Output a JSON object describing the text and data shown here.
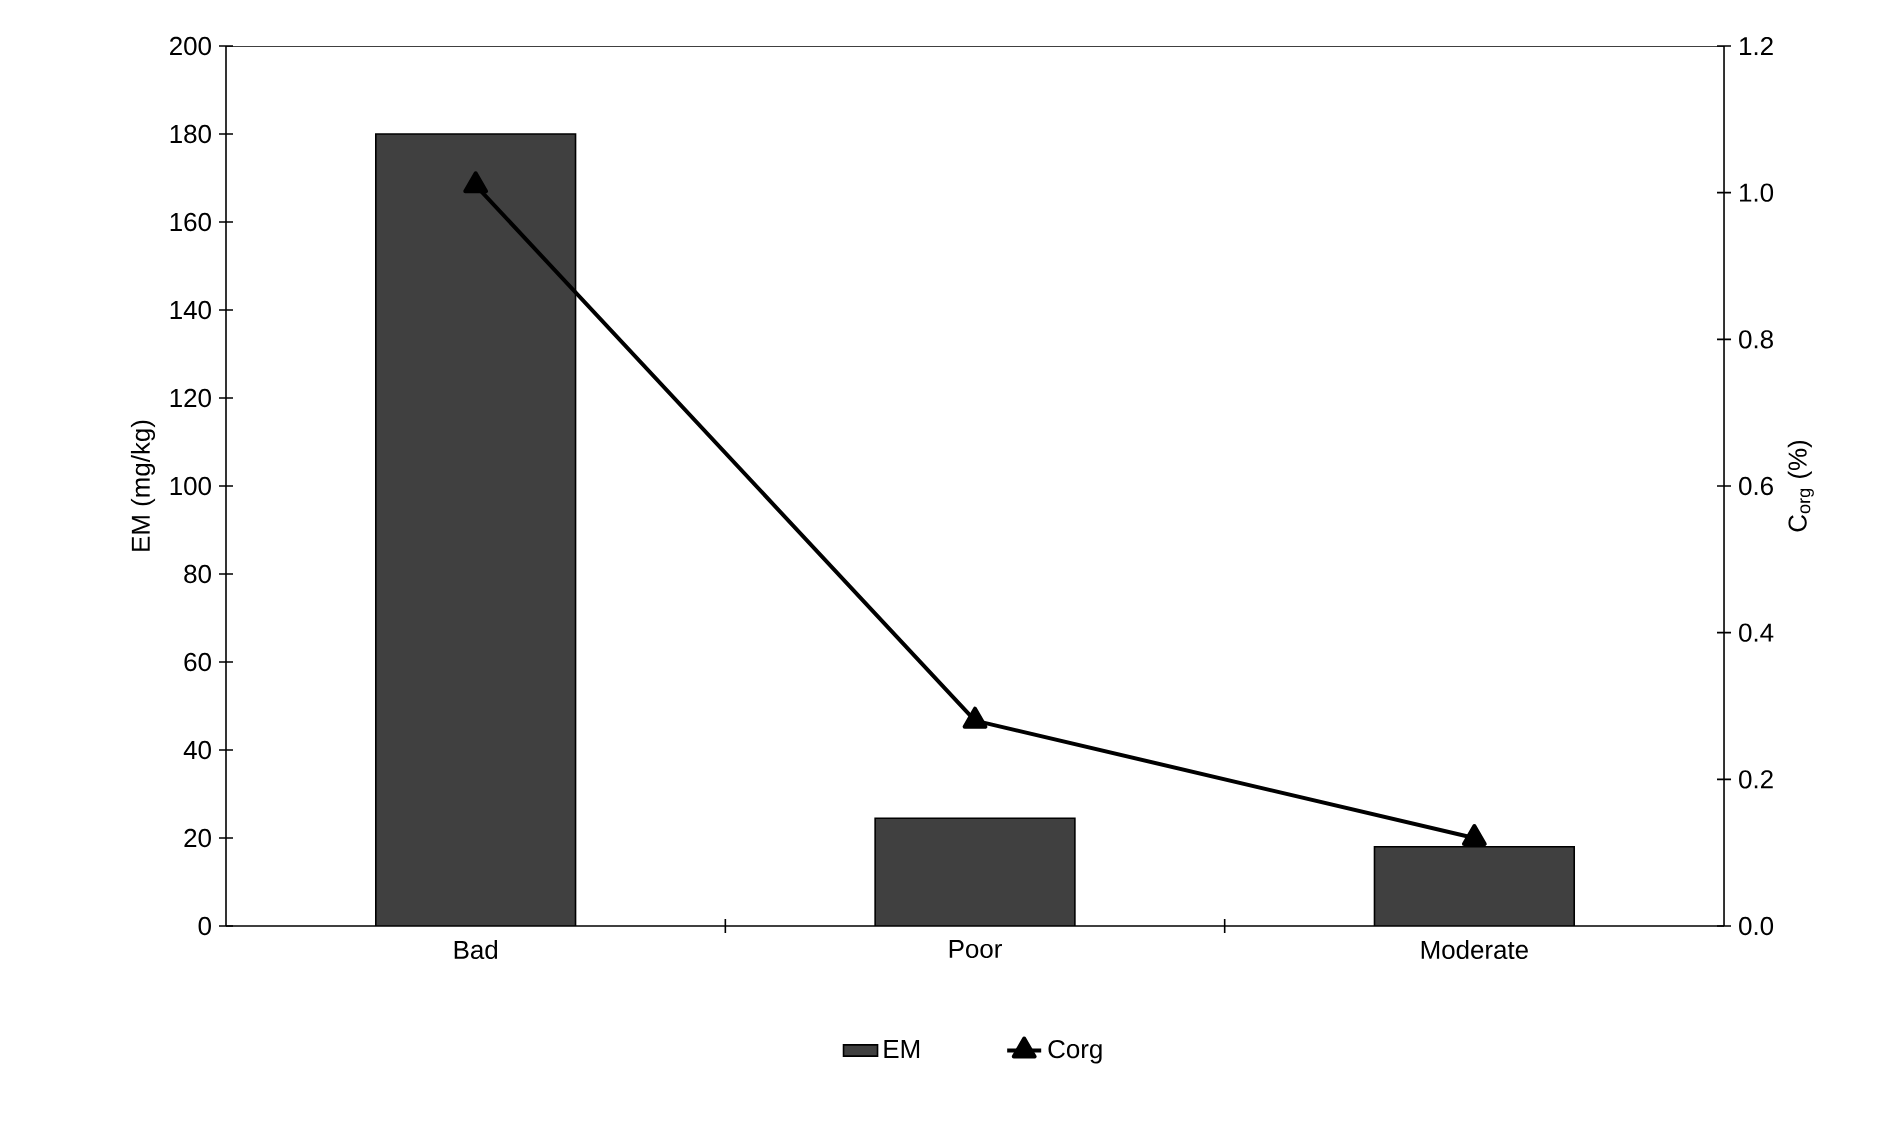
{
  "chart_data": {
    "type": "bar",
    "categories": [
      "Bad",
      "Poor",
      "Moderate"
    ],
    "ylabel": "EM (mg/kg)",
    "y2label": "C$_{org}$ (%)",
    "ylim": [
      0,
      200
    ],
    "yticks": [
      0,
      20,
      40,
      60,
      80,
      100,
      120,
      140,
      160,
      180,
      200
    ],
    "y2lim": [
      0,
      1.2
    ],
    "y2ticks": [
      {
        "value": 0,
        "label": "0.0"
      },
      {
        "value": 0.2,
        "label": "0.2"
      },
      {
        "value": 0.4,
        "label": "0.4"
      },
      {
        "value": 0.6,
        "label": "0.6"
      },
      {
        "value": 0.8,
        "label": "0.8"
      },
      {
        "value": 1.0,
        "label": "1.0"
      },
      {
        "value": 1.2,
        "label": "1.2"
      }
    ],
    "series": [
      {
        "name": "EM",
        "color": "#404040",
        "values": [
          180,
          24.5,
          18
        ]
      },
      {
        "name": "Corg",
        "type": "line",
        "axis": "y2",
        "color": "#000000",
        "marker": "triangle",
        "values": [
          1.01,
          0.28,
          0.12
        ]
      }
    ],
    "legend": "bottom",
    "grid": false
  }
}
